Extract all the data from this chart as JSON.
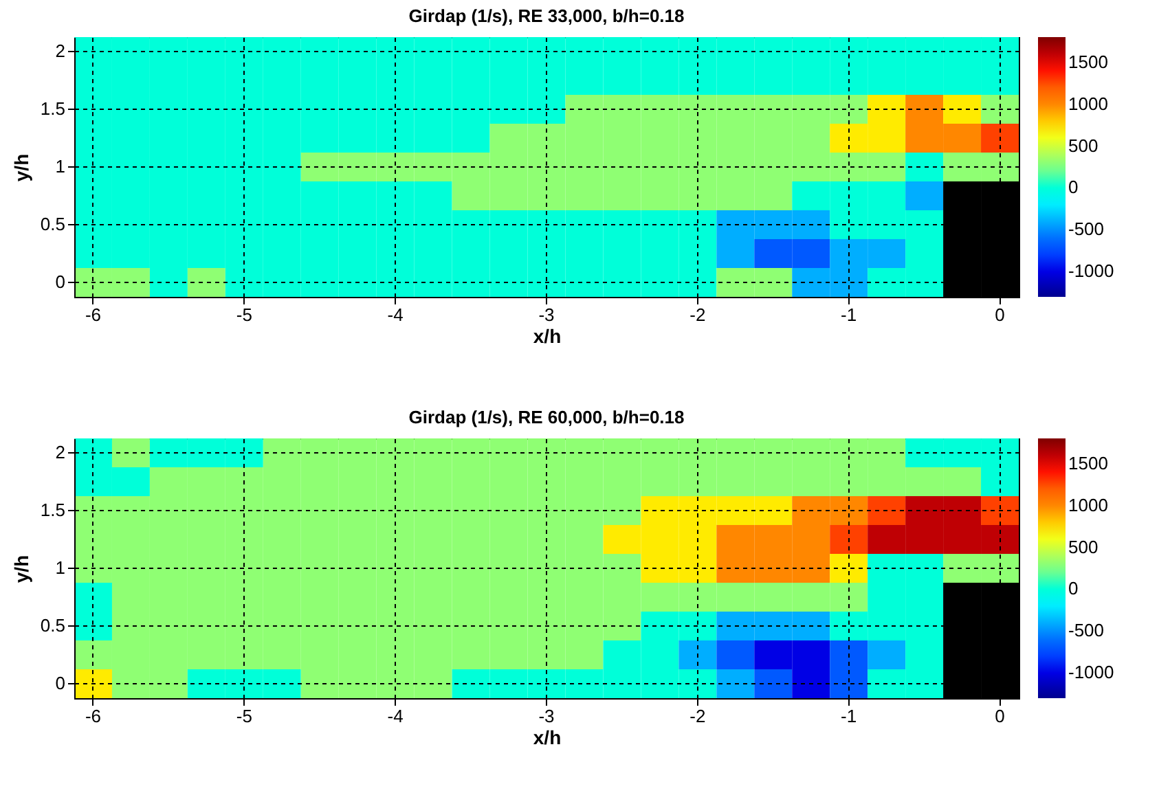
{
  "chart_data": [
    {
      "type": "heatmap",
      "title": "Girdap (1/s), RE 33,000, b/h=0.18",
      "xlabel": "x/h",
      "ylabel": "y/h",
      "grid": true,
      "categories": [
        "-6",
        null,
        null,
        null,
        "-5",
        null,
        null,
        null,
        "-4",
        null,
        null,
        null,
        "-3",
        null,
        null,
        null,
        "-2",
        null,
        null,
        null,
        "-1",
        null,
        null,
        null,
        "0"
      ],
      "y_categories": [
        "2",
        null,
        "1.5",
        null,
        "1",
        null,
        "0.5",
        null,
        "0"
      ],
      "clim": [
        -1300,
        1800
      ],
      "cticks": [
        -1000,
        -500,
        0,
        500,
        1000,
        1500
      ],
      "cells": [
        [
          0,
          0,
          0,
          0,
          0,
          0,
          0,
          0,
          0,
          0,
          0,
          0,
          0,
          0,
          0,
          0,
          0,
          0,
          0,
          0,
          0,
          0,
          0,
          0,
          0
        ],
        [
          0,
          0,
          0,
          0,
          0,
          0,
          0,
          0,
          0,
          0,
          0,
          0,
          0,
          0,
          0,
          0,
          0,
          0,
          0,
          0,
          0,
          0,
          0,
          0,
          0
        ],
        [
          0,
          0,
          0,
          0,
          0,
          0,
          0,
          0,
          0,
          0,
          0,
          0,
          0,
          300,
          300,
          300,
          300,
          300,
          300,
          300,
          300,
          700,
          1000,
          700,
          300
        ],
        [
          0,
          0,
          0,
          0,
          0,
          0,
          0,
          0,
          0,
          0,
          0,
          300,
          300,
          300,
          300,
          300,
          300,
          300,
          300,
          300,
          700,
          700,
          1000,
          1000,
          1300
        ],
        [
          0,
          0,
          0,
          0,
          0,
          0,
          300,
          300,
          300,
          300,
          300,
          300,
          300,
          300,
          300,
          300,
          300,
          300,
          300,
          300,
          300,
          300,
          0,
          300,
          300
        ],
        [
          0,
          0,
          0,
          0,
          0,
          0,
          0,
          0,
          0,
          0,
          300,
          300,
          300,
          300,
          300,
          300,
          300,
          300,
          300,
          0,
          0,
          0,
          -400,
          null,
          null
        ],
        [
          0,
          0,
          0,
          0,
          0,
          0,
          0,
          0,
          0,
          0,
          0,
          0,
          0,
          0,
          0,
          0,
          0,
          -400,
          -400,
          -400,
          0,
          0,
          0,
          null,
          null
        ],
        [
          0,
          0,
          0,
          0,
          0,
          0,
          0,
          0,
          0,
          0,
          0,
          0,
          0,
          0,
          0,
          0,
          0,
          -400,
          -700,
          -700,
          -400,
          -400,
          0,
          null,
          null
        ],
        [
          300,
          300,
          0,
          300,
          0,
          0,
          0,
          0,
          0,
          0,
          0,
          0,
          0,
          0,
          0,
          0,
          0,
          300,
          300,
          -400,
          -400,
          0,
          0,
          null,
          null
        ]
      ]
    },
    {
      "type": "heatmap",
      "title": "Girdap (1/s), RE 60,000, b/h=0.18",
      "xlabel": "x/h",
      "ylabel": "y/h",
      "grid": true,
      "categories": [
        "-6",
        null,
        null,
        null,
        "-5",
        null,
        null,
        null,
        "-4",
        null,
        null,
        null,
        "-3",
        null,
        null,
        null,
        "-2",
        null,
        null,
        null,
        "-1",
        null,
        null,
        null,
        "0"
      ],
      "y_categories": [
        "2",
        null,
        "1.5",
        null,
        "1",
        null,
        "0.5",
        null,
        "0"
      ],
      "clim": [
        -1300,
        1800
      ],
      "cticks": [
        -1000,
        -500,
        0,
        500,
        1000,
        1500
      ],
      "cells": [
        [
          0,
          300,
          0,
          0,
          0,
          300,
          300,
          300,
          300,
          300,
          300,
          300,
          300,
          300,
          300,
          300,
          300,
          300,
          300,
          300,
          300,
          300,
          0,
          0,
          0
        ],
        [
          0,
          0,
          300,
          300,
          300,
          300,
          300,
          300,
          300,
          300,
          300,
          300,
          300,
          300,
          300,
          300,
          300,
          300,
          300,
          300,
          300,
          300,
          300,
          300,
          0
        ],
        [
          300,
          300,
          300,
          300,
          300,
          300,
          300,
          300,
          300,
          300,
          300,
          300,
          300,
          300,
          300,
          700,
          700,
          700,
          700,
          1000,
          1000,
          1300,
          1600,
          1600,
          1300
        ],
        [
          300,
          300,
          300,
          300,
          300,
          300,
          300,
          300,
          300,
          300,
          300,
          300,
          300,
          300,
          700,
          700,
          700,
          1000,
          1000,
          1000,
          1300,
          1600,
          1600,
          1600,
          1600
        ],
        [
          300,
          300,
          300,
          300,
          300,
          300,
          300,
          300,
          300,
          300,
          300,
          300,
          300,
          300,
          300,
          700,
          700,
          1000,
          1000,
          1000,
          700,
          0,
          0,
          300,
          300
        ],
        [
          0,
          300,
          300,
          300,
          300,
          300,
          300,
          300,
          300,
          300,
          300,
          300,
          300,
          300,
          300,
          300,
          300,
          300,
          300,
          300,
          300,
          0,
          0,
          null,
          null
        ],
        [
          0,
          300,
          300,
          300,
          300,
          300,
          300,
          300,
          300,
          300,
          300,
          300,
          300,
          300,
          300,
          0,
          0,
          -400,
          -400,
          -400,
          0,
          0,
          0,
          null,
          null
        ],
        [
          300,
          300,
          300,
          300,
          300,
          300,
          300,
          300,
          300,
          300,
          300,
          300,
          300,
          300,
          0,
          0,
          -400,
          -700,
          -1000,
          -1000,
          -700,
          -400,
          0,
          null,
          null
        ],
        [
          700,
          300,
          300,
          0,
          0,
          0,
          300,
          300,
          300,
          300,
          0,
          0,
          0,
          0,
          0,
          0,
          0,
          -400,
          -700,
          -1000,
          -700,
          0,
          0,
          null,
          null
        ]
      ]
    }
  ]
}
